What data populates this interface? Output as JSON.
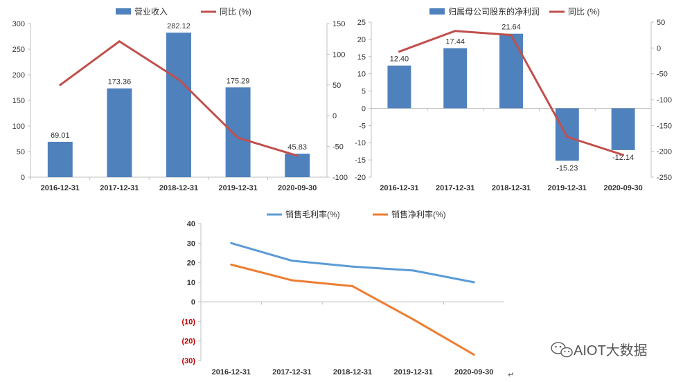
{
  "chart_data": [
    {
      "type": "bar",
      "series": [
        {
          "name": "营业收入",
          "type": "bar",
          "axis": "left",
          "color": "#4f81bd",
          "values": [
            69.01,
            173.36,
            282.12,
            175.29,
            45.83
          ],
          "labels": [
            "69.01",
            "173.36",
            "282.12",
            "175.29",
            "45.83"
          ]
        },
        {
          "name": "同比 (%)",
          "type": "line",
          "axis": "right",
          "color": "#c0504d",
          "values": [
            50,
            121,
            59,
            -36,
            -65
          ]
        }
      ],
      "categories": [
        "2016-12-31",
        "2017-12-31",
        "2018-12-31",
        "2019-12-31",
        "2020-09-30"
      ],
      "left_axis": {
        "ylim": [
          0,
          300
        ],
        "ticks": [
          "0",
          "50",
          "100",
          "150",
          "200",
          "250",
          "300"
        ]
      },
      "right_axis": {
        "ylim": [
          -100,
          150
        ],
        "ticks": [
          "-100",
          "-50",
          "0",
          "50",
          "100",
          "150"
        ]
      }
    },
    {
      "type": "bar",
      "series": [
        {
          "name": "归属母公司股东的净利润",
          "type": "bar",
          "axis": "left",
          "color": "#4f81bd",
          "values": [
            12.4,
            17.44,
            21.64,
            -15.23,
            -12.14
          ],
          "labels": [
            "12.40",
            "17.44",
            "21.64",
            "-15.23",
            "-12.14"
          ]
        },
        {
          "name": "同比 (%)",
          "type": "line",
          "axis": "right",
          "color": "#c0504d",
          "values": [
            -7,
            33,
            25,
            -172,
            -207
          ]
        }
      ],
      "categories": [
        "2016-12-31",
        "2017-12-31",
        "2018-12-31",
        "2019-12-31",
        "2020-09-30"
      ],
      "left_axis": {
        "ylim": [
          -20,
          25
        ],
        "ticks": [
          "-20",
          "-15",
          "-10",
          "-5",
          "0",
          "5",
          "10",
          "15",
          "20",
          "25"
        ]
      },
      "right_axis": {
        "ylim": [
          -250,
          50
        ],
        "ticks": [
          "-250",
          "-200",
          "-150",
          "-100",
          "-50",
          "0",
          "50"
        ]
      }
    },
    {
      "type": "line",
      "series": [
        {
          "name": "销售毛利率(%)",
          "color": "#5b9bd5",
          "values": [
            30,
            21,
            18,
            16,
            10
          ]
        },
        {
          "name": "销售净利率(%)",
          "color": "#ed7d31",
          "values": [
            19,
            11,
            8,
            -9,
            -27
          ]
        }
      ],
      "categories": [
        "2016-12-31",
        "2017-12-31",
        "2018-12-31",
        "2019-12-31",
        "2020-09-30"
      ],
      "ylim": [
        -30,
        40
      ],
      "ticks": [
        "(30)",
        "(20)",
        "(10)",
        "0",
        "10",
        "20",
        "30",
        "40"
      ],
      "negative_tick_color": "#c00000"
    }
  ],
  "watermark": {
    "text": "AIOT大数据",
    "icon": "wechat-icon"
  },
  "return_mark": "↵"
}
